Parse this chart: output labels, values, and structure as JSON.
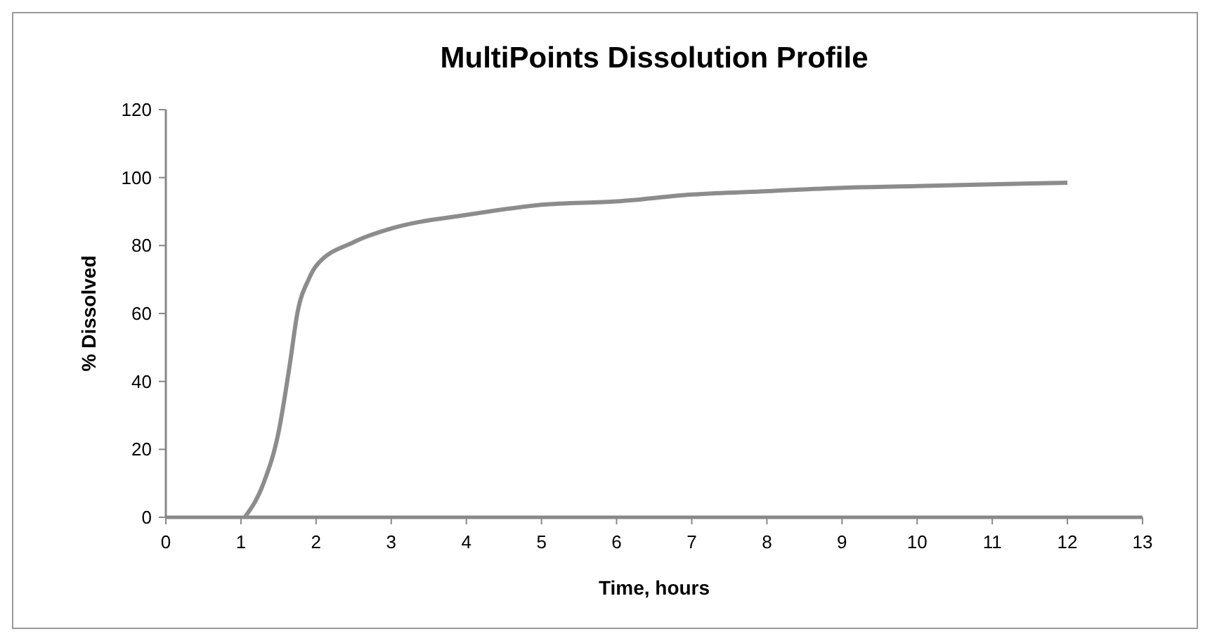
{
  "chart_data": {
    "type": "line",
    "title": "MultiPoints Dissolution Profile",
    "xlabel": "Time, hours",
    "ylabel": "% Dissolved",
    "xlim": [
      0,
      13
    ],
    "xticks": [
      0,
      1,
      2,
      3,
      4,
      5,
      6,
      7,
      8,
      9,
      10,
      11,
      12,
      13
    ],
    "ylim": [
      0,
      120
    ],
    "yticks": [
      0,
      20,
      40,
      60,
      80,
      100,
      120
    ],
    "grid": false,
    "marker": "none",
    "line_style": "solid",
    "series": [
      {
        "color": "#8c8c8c",
        "x": [
          1.05,
          1.3,
          1.5,
          1.65,
          1.75,
          1.9,
          2,
          2.5,
          3,
          4,
          5,
          6,
          7,
          8,
          9,
          10,
          11,
          12
        ],
        "values": [
          0,
          10,
          25,
          45,
          60,
          70,
          74,
          81,
          85,
          89,
          92,
          93,
          95,
          96,
          97,
          97.5,
          98,
          98.5
        ]
      }
    ]
  }
}
